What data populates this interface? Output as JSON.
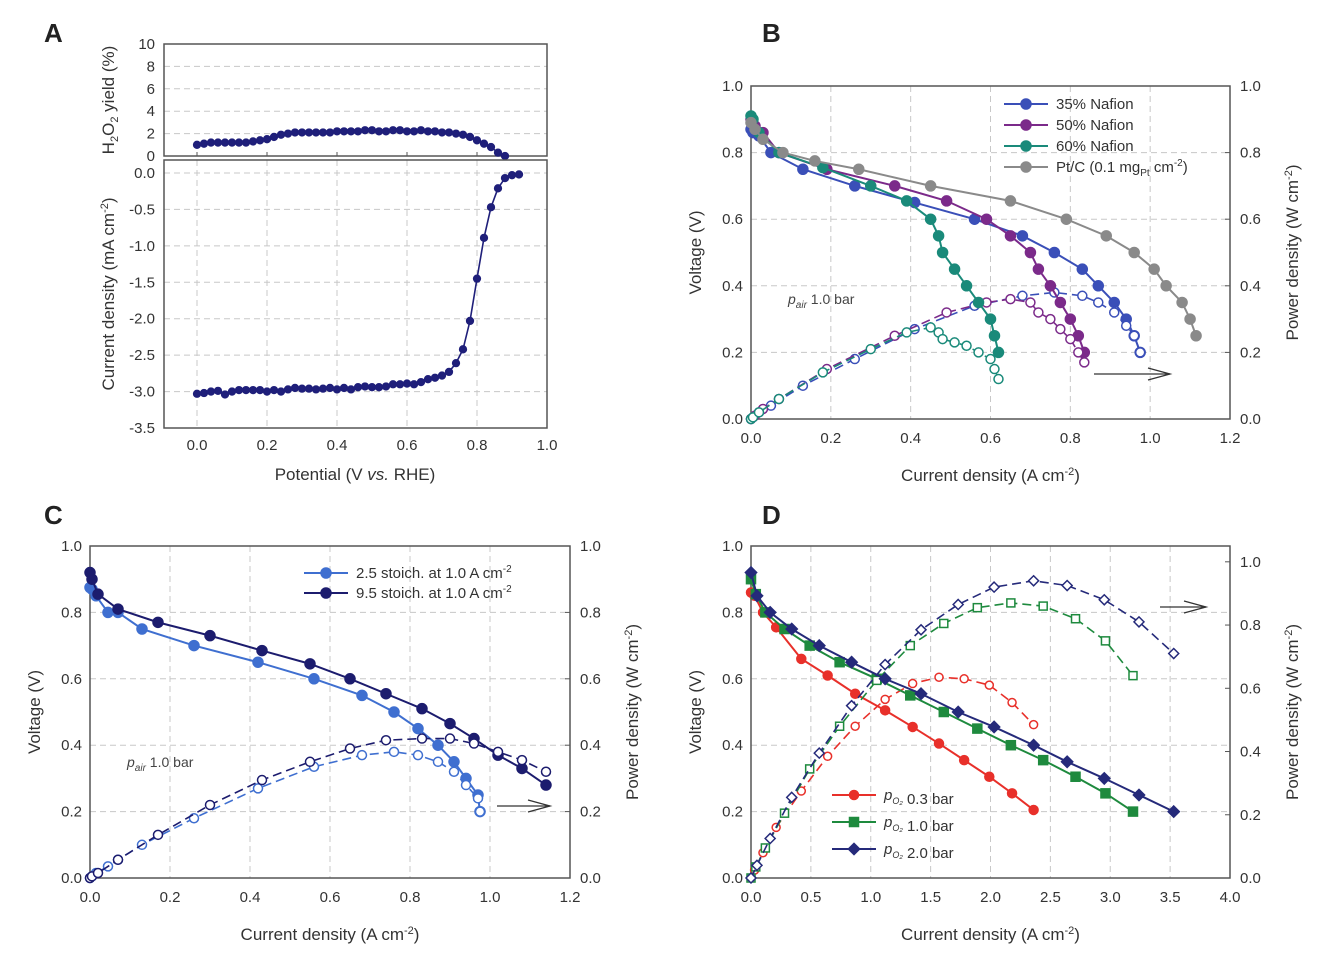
{
  "chart_data": [
    {
      "id": "A",
      "type": "line",
      "panel_label": "A",
      "xlabel": "Potential (V vs. RHE)",
      "xlim": [
        -0.1,
        1.0
      ],
      "xticks": [
        "0.0",
        "0.2",
        "0.4",
        "0.6",
        "0.8",
        "1.0"
      ],
      "grid": true,
      "subplots": [
        {
          "ylabel": "H2O2 yield (%)",
          "ylim": [
            0,
            10
          ],
          "yticks": [
            "0",
            "2",
            "4",
            "6",
            "8",
            "10"
          ],
          "series": [
            {
              "name": "H2O2 yield",
              "color": "#1f1f7a",
              "marker": "circle-filled",
              "x": [
                0.0,
                0.02,
                0.04,
                0.06,
                0.08,
                0.1,
                0.12,
                0.14,
                0.16,
                0.18,
                0.2,
                0.22,
                0.24,
                0.26,
                0.28,
                0.3,
                0.32,
                0.34,
                0.36,
                0.38,
                0.4,
                0.42,
                0.44,
                0.46,
                0.48,
                0.5,
                0.52,
                0.54,
                0.56,
                0.58,
                0.6,
                0.62,
                0.64,
                0.66,
                0.68,
                0.7,
                0.72,
                0.74,
                0.76,
                0.78,
                0.8,
                0.82,
                0.84,
                0.86,
                0.88
              ],
              "y": [
                1.0,
                1.1,
                1.2,
                1.2,
                1.2,
                1.2,
                1.2,
                1.2,
                1.3,
                1.4,
                1.5,
                1.7,
                1.9,
                2.0,
                2.1,
                2.1,
                2.1,
                2.1,
                2.1,
                2.1,
                2.2,
                2.2,
                2.2,
                2.2,
                2.3,
                2.3,
                2.2,
                2.2,
                2.3,
                2.3,
                2.2,
                2.2,
                2.3,
                2.2,
                2.2,
                2.1,
                2.1,
                2.0,
                1.9,
                1.7,
                1.4,
                1.1,
                0.8,
                0.3,
                0.0
              ]
            }
          ]
        },
        {
          "ylabel": "Current density (mA cm-2)",
          "ylim": [
            -3.5,
            0.18
          ],
          "yticks": [
            "0.0",
            "-0.5",
            "-1.0",
            "-1.5",
            "-2.0",
            "-2.5",
            "-3.0",
            "-3.5"
          ],
          "series": [
            {
              "name": "Current density",
              "color": "#1f1f7a",
              "marker": "circle-filled",
              "x": [
                0.0,
                0.02,
                0.04,
                0.06,
                0.08,
                0.1,
                0.12,
                0.14,
                0.16,
                0.18,
                0.2,
                0.22,
                0.24,
                0.26,
                0.28,
                0.3,
                0.32,
                0.34,
                0.36,
                0.38,
                0.4,
                0.42,
                0.44,
                0.46,
                0.48,
                0.5,
                0.52,
                0.54,
                0.56,
                0.58,
                0.6,
                0.62,
                0.64,
                0.66,
                0.68,
                0.7,
                0.72,
                0.74,
                0.76,
                0.78,
                0.8,
                0.82,
                0.84,
                0.86,
                0.88,
                0.9,
                0.92
              ],
              "y": [
                -3.03,
                -3.02,
                -3.0,
                -2.99,
                -3.04,
                -3.0,
                -2.98,
                -2.98,
                -2.98,
                -2.98,
                -3.0,
                -2.98,
                -3.0,
                -2.97,
                -2.95,
                -2.96,
                -2.96,
                -2.97,
                -2.96,
                -2.95,
                -2.97,
                -2.95,
                -2.97,
                -2.94,
                -2.93,
                -2.94,
                -2.94,
                -2.93,
                -2.9,
                -2.9,
                -2.89,
                -2.9,
                -2.87,
                -2.83,
                -2.81,
                -2.78,
                -2.73,
                -2.61,
                -2.42,
                -2.03,
                -1.45,
                -0.89,
                -0.47,
                -0.21,
                -0.07,
                -0.03,
                -0.02
              ]
            }
          ]
        }
      ]
    },
    {
      "id": "B",
      "type": "line",
      "panel_label": "B",
      "xlabel": "Current density (A cm-2)",
      "ylabel": "Voltage (V)",
      "ylabel_right": "Power density (W cm-2)",
      "xlim": [
        0,
        1.2
      ],
      "ylim": [
        0,
        1.0
      ],
      "ylim_right": [
        0,
        1.0
      ],
      "xticks": [
        "0.0",
        "0.2",
        "0.4",
        "0.6",
        "0.8",
        "1.0",
        "1.2"
      ],
      "yticks": [
        "0.0",
        "0.2",
        "0.4",
        "0.6",
        "0.8",
        "1.0"
      ],
      "yticks_right": [
        "0.0",
        "0.2",
        "0.4",
        "0.6",
        "0.8",
        "1.0"
      ],
      "grid": true,
      "legend_position": "top-right",
      "annotation": "p_air 1.0 bar",
      "arrow": "right (power density axis)",
      "series": [
        {
          "name": "35% Nafion",
          "color": "#3a4fb8",
          "x": [
            0.0,
            0.005,
            0.02,
            0.05,
            0.13,
            0.26,
            0.41,
            0.56,
            0.68,
            0.76,
            0.83,
            0.87,
            0.91,
            0.94,
            0.96,
            0.975
          ],
          "voltage": [
            0.87,
            0.86,
            0.85,
            0.8,
            0.75,
            0.7,
            0.65,
            0.6,
            0.55,
            0.5,
            0.45,
            0.4,
            0.35,
            0.3,
            0.25,
            0.2
          ],
          "power": [
            0.0,
            0.005,
            0.02,
            0.04,
            0.1,
            0.18,
            0.27,
            0.34,
            0.37,
            0.38,
            0.37,
            0.35,
            0.32,
            0.28,
            0.25,
            0.2
          ]
        },
        {
          "name": "50% Nafion",
          "color": "#7b2a8a",
          "x": [
            0.0,
            0.01,
            0.03,
            0.07,
            0.19,
            0.36,
            0.49,
            0.59,
            0.65,
            0.7,
            0.72,
            0.75,
            0.775,
            0.8,
            0.82,
            0.835
          ],
          "voltage": [
            0.9,
            0.88,
            0.86,
            0.8,
            0.75,
            0.7,
            0.655,
            0.6,
            0.55,
            0.5,
            0.45,
            0.4,
            0.35,
            0.3,
            0.25,
            0.2
          ],
          "power": [
            0.0,
            0.01,
            0.03,
            0.06,
            0.15,
            0.25,
            0.32,
            0.35,
            0.36,
            0.35,
            0.32,
            0.3,
            0.27,
            0.24,
            0.2,
            0.17
          ]
        },
        {
          "name": "60% Nafion",
          "color": "#1a8a7a",
          "x": [
            0.0,
            0.005,
            0.02,
            0.07,
            0.18,
            0.3,
            0.39,
            0.45,
            0.47,
            0.48,
            0.51,
            0.54,
            0.57,
            0.6,
            0.61,
            0.62
          ],
          "voltage": [
            0.91,
            0.9,
            0.86,
            0.8,
            0.755,
            0.7,
            0.655,
            0.6,
            0.55,
            0.5,
            0.45,
            0.4,
            0.35,
            0.3,
            0.25,
            0.2
          ],
          "power": [
            0.0,
            0.005,
            0.02,
            0.06,
            0.14,
            0.21,
            0.26,
            0.275,
            0.26,
            0.24,
            0.23,
            0.22,
            0.2,
            0.18,
            0.15,
            0.12
          ]
        },
        {
          "name": "Pt/C (0.1 mgPt cm-2)",
          "color": "#8a8a8a",
          "x": [
            0.0,
            0.01,
            0.03,
            0.08,
            0.16,
            0.27,
            0.45,
            0.65,
            0.79,
            0.89,
            0.96,
            1.01,
            1.04,
            1.08,
            1.1,
            1.115
          ],
          "voltage": [
            0.89,
            0.87,
            0.84,
            0.8,
            0.775,
            0.75,
            0.7,
            0.655,
            0.6,
            0.55,
            0.5,
            0.45,
            0.4,
            0.35,
            0.3,
            0.25
          ],
          "power": null
        }
      ]
    },
    {
      "id": "C",
      "type": "line",
      "panel_label": "C",
      "xlabel": "Current density (A cm-2)",
      "ylabel": "Voltage (V)",
      "ylabel_right": "Power density (W cm-2)",
      "xlim": [
        0,
        1.2
      ],
      "ylim": [
        0,
        1.0
      ],
      "ylim_right": [
        0,
        1.0
      ],
      "xticks": [
        "0.0",
        "0.2",
        "0.4",
        "0.6",
        "0.8",
        "1.0",
        "1.2"
      ],
      "yticks": [
        "0.0",
        "0.2",
        "0.4",
        "0.6",
        "0.8",
        "1.0"
      ],
      "yticks_right": [
        "0.0",
        "0.2",
        "0.4",
        "0.6",
        "0.8",
        "1.0"
      ],
      "grid": true,
      "legend_position": "top-right",
      "annotation": "p_air 1.0 bar",
      "arrow": "right (power density axis)",
      "series": [
        {
          "name": "2.5 stoich. at 1.0 A cm-2",
          "color": "#3f6fd0",
          "x": [
            0.0,
            0.005,
            0.015,
            0.045,
            0.07,
            0.13,
            0.26,
            0.42,
            0.56,
            0.68,
            0.76,
            0.82,
            0.87,
            0.91,
            0.94,
            0.97,
            0.975
          ],
          "voltage": [
            0.875,
            0.87,
            0.85,
            0.8,
            0.8,
            0.75,
            0.7,
            0.65,
            0.6,
            0.55,
            0.5,
            0.45,
            0.4,
            0.35,
            0.3,
            0.25,
            0.2
          ],
          "power": [
            0.0,
            0.005,
            0.015,
            0.035,
            0.055,
            0.1,
            0.18,
            0.27,
            0.335,
            0.37,
            0.38,
            0.37,
            0.35,
            0.32,
            0.28,
            0.24,
            0.2
          ]
        },
        {
          "name": "9.5 stoich. at 1.0 A cm-2",
          "color": "#1c1c6e",
          "x": [
            0.0,
            0.005,
            0.02,
            0.07,
            0.17,
            0.3,
            0.43,
            0.55,
            0.65,
            0.74,
            0.83,
            0.9,
            0.96,
            1.02,
            1.08,
            1.14
          ],
          "voltage": [
            0.92,
            0.9,
            0.855,
            0.81,
            0.77,
            0.73,
            0.685,
            0.645,
            0.6,
            0.555,
            0.51,
            0.465,
            0.42,
            0.37,
            0.33,
            0.28
          ],
          "power": [
            0.0,
            0.005,
            0.015,
            0.055,
            0.13,
            0.22,
            0.295,
            0.35,
            0.39,
            0.415,
            0.42,
            0.42,
            0.405,
            0.38,
            0.355,
            0.32
          ]
        }
      ]
    },
    {
      "id": "D",
      "type": "line",
      "panel_label": "D",
      "xlabel": "Current density (A cm-2)",
      "ylabel": "Voltage (V)",
      "ylabel_right": "Power density (W cm-2)",
      "xlim": [
        0,
        4.0
      ],
      "ylim": [
        0,
        1.0
      ],
      "ylim_right": [
        0,
        1.05
      ],
      "xticks": [
        "0.0",
        "0.5",
        "1.0",
        "1.5",
        "2.0",
        "2.5",
        "3.0",
        "3.5",
        "4.0"
      ],
      "yticks": [
        "0.0",
        "0.2",
        "0.4",
        "0.6",
        "0.8",
        "1.0"
      ],
      "yticks_right": [
        "0.0",
        "0.2",
        "0.4",
        "0.6",
        "0.8",
        "1.0"
      ],
      "grid": true,
      "legend_position": "bottom-left",
      "arrow": "right (power density axis)",
      "series": [
        {
          "name": "pO2 0.3 bar",
          "color": "#e8302a",
          "marker": "circle",
          "x": [
            0.0,
            0.03,
            0.1,
            0.21,
            0.42,
            0.64,
            0.87,
            1.12,
            1.35,
            1.57,
            1.78,
            1.99,
            2.18,
            2.36
          ],
          "voltage": [
            0.86,
            0.85,
            0.8,
            0.755,
            0.66,
            0.61,
            0.555,
            0.505,
            0.455,
            0.405,
            0.355,
            0.305,
            0.255,
            0.205
          ],
          "power": [
            0.0,
            0.025,
            0.08,
            0.16,
            0.275,
            0.385,
            0.48,
            0.565,
            0.615,
            0.635,
            0.63,
            0.61,
            0.555,
            0.485
          ]
        },
        {
          "name": "pO2 1.0 bar",
          "color": "#1e8a3e",
          "marker": "square",
          "x": [
            0.0,
            0.04,
            0.12,
            0.28,
            0.49,
            0.74,
            1.05,
            1.33,
            1.61,
            1.89,
            2.17,
            2.44,
            2.71,
            2.96,
            3.19
          ],
          "voltage": [
            0.9,
            0.855,
            0.8,
            0.75,
            0.7,
            0.65,
            0.6,
            0.55,
            0.5,
            0.45,
            0.4,
            0.355,
            0.305,
            0.255,
            0.2
          ],
          "power": [
            0.0,
            0.035,
            0.095,
            0.205,
            0.345,
            0.48,
            0.625,
            0.735,
            0.805,
            0.855,
            0.87,
            0.86,
            0.82,
            0.75,
            0.64
          ]
        },
        {
          "name": "pO2 2.0 bar",
          "color": "#252a7a",
          "marker": "diamond",
          "x": [
            0.0,
            0.05,
            0.16,
            0.34,
            0.57,
            0.84,
            1.12,
            1.42,
            1.73,
            2.03,
            2.36,
            2.64,
            2.95,
            3.24,
            3.53
          ],
          "voltage": [
            0.92,
            0.85,
            0.8,
            0.75,
            0.7,
            0.65,
            0.6,
            0.555,
            0.5,
            0.455,
            0.4,
            0.35,
            0.3,
            0.25,
            0.2
          ],
          "power": [
            0.0,
            0.04,
            0.125,
            0.255,
            0.395,
            0.545,
            0.675,
            0.785,
            0.865,
            0.92,
            0.94,
            0.925,
            0.88,
            0.81,
            0.71
          ]
        }
      ]
    }
  ],
  "labels": {
    "panel_a": "A",
    "panel_b": "B",
    "panel_c": "C",
    "panel_d": "D",
    "a_top_ylabel_main": "H",
    "a_top_ylabel": "H₂O₂ yield (%)",
    "a_bottom_ylabel": "Current density (mA cm⁻²)",
    "a_xlabel": "Potential (V vs. RHE)",
    "voltage_label": "Voltage (V)",
    "power_label": "Power density (W cm⁻²)",
    "current_label": "Current density (A cm⁻²)",
    "pair_label": "p",
    "pair_sub": "air",
    "pair_value": "1.0 bar",
    "b_legend": [
      "35% Nafion",
      "50% Nafion",
      "60% Nafion",
      "Pt/C (0.1 mgPt cm⁻²)"
    ],
    "c_legend": [
      "2.5 stoich. at 1.0 A cm⁻²",
      "9.5 stoich. at 1.0 A cm⁻²"
    ],
    "d_legend": [
      "pO₂ 0.3 bar",
      "pO₂ 1.0 bar",
      "pO₂ 2.0 bar"
    ]
  }
}
